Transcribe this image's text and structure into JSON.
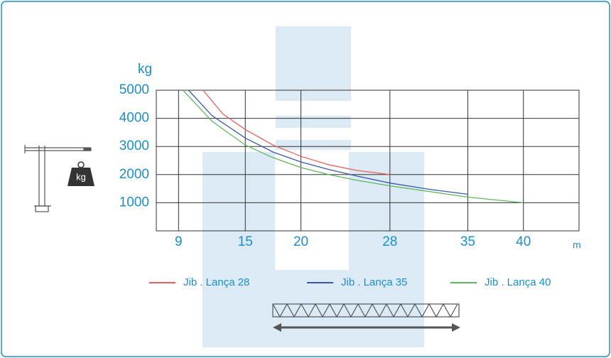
{
  "chart_data": {
    "type": "line",
    "y_label": "kg",
    "x_label": "m",
    "weight_label": "kg",
    "xlim": [
      7,
      45
    ],
    "ylim": [
      0,
      5000
    ],
    "xticks": [
      9,
      15,
      20,
      28,
      35,
      40
    ],
    "yticks": [
      1000,
      2000,
      3000,
      4000,
      5000
    ],
    "grid": true,
    "series": [
      {
        "name": "Jib . Lança 28",
        "color": "#e8605a",
        "x": [
          11.2,
          13,
          15,
          17.5,
          20,
          22.5,
          25,
          28
        ],
        "values": [
          5000,
          4150,
          3600,
          3050,
          2650,
          2350,
          2150,
          2000
        ]
      },
      {
        "name": "Jib . Lança 35",
        "color": "#3a58a8",
        "x": [
          9.9,
          12,
          15,
          17.5,
          20,
          22.5,
          25,
          28,
          31.5,
          35
        ],
        "values": [
          5000,
          4100,
          3300,
          2800,
          2450,
          2180,
          1950,
          1700,
          1480,
          1300
        ]
      },
      {
        "name": "Jib . Lança 40",
        "color": "#5cb85c",
        "x": [
          9.4,
          12,
          15,
          17.5,
          20,
          22.5,
          25,
          28,
          31.5,
          35,
          40
        ],
        "values": [
          5000,
          3900,
          3050,
          2600,
          2250,
          2000,
          1800,
          1600,
          1400,
          1200,
          1000
        ]
      }
    ]
  }
}
